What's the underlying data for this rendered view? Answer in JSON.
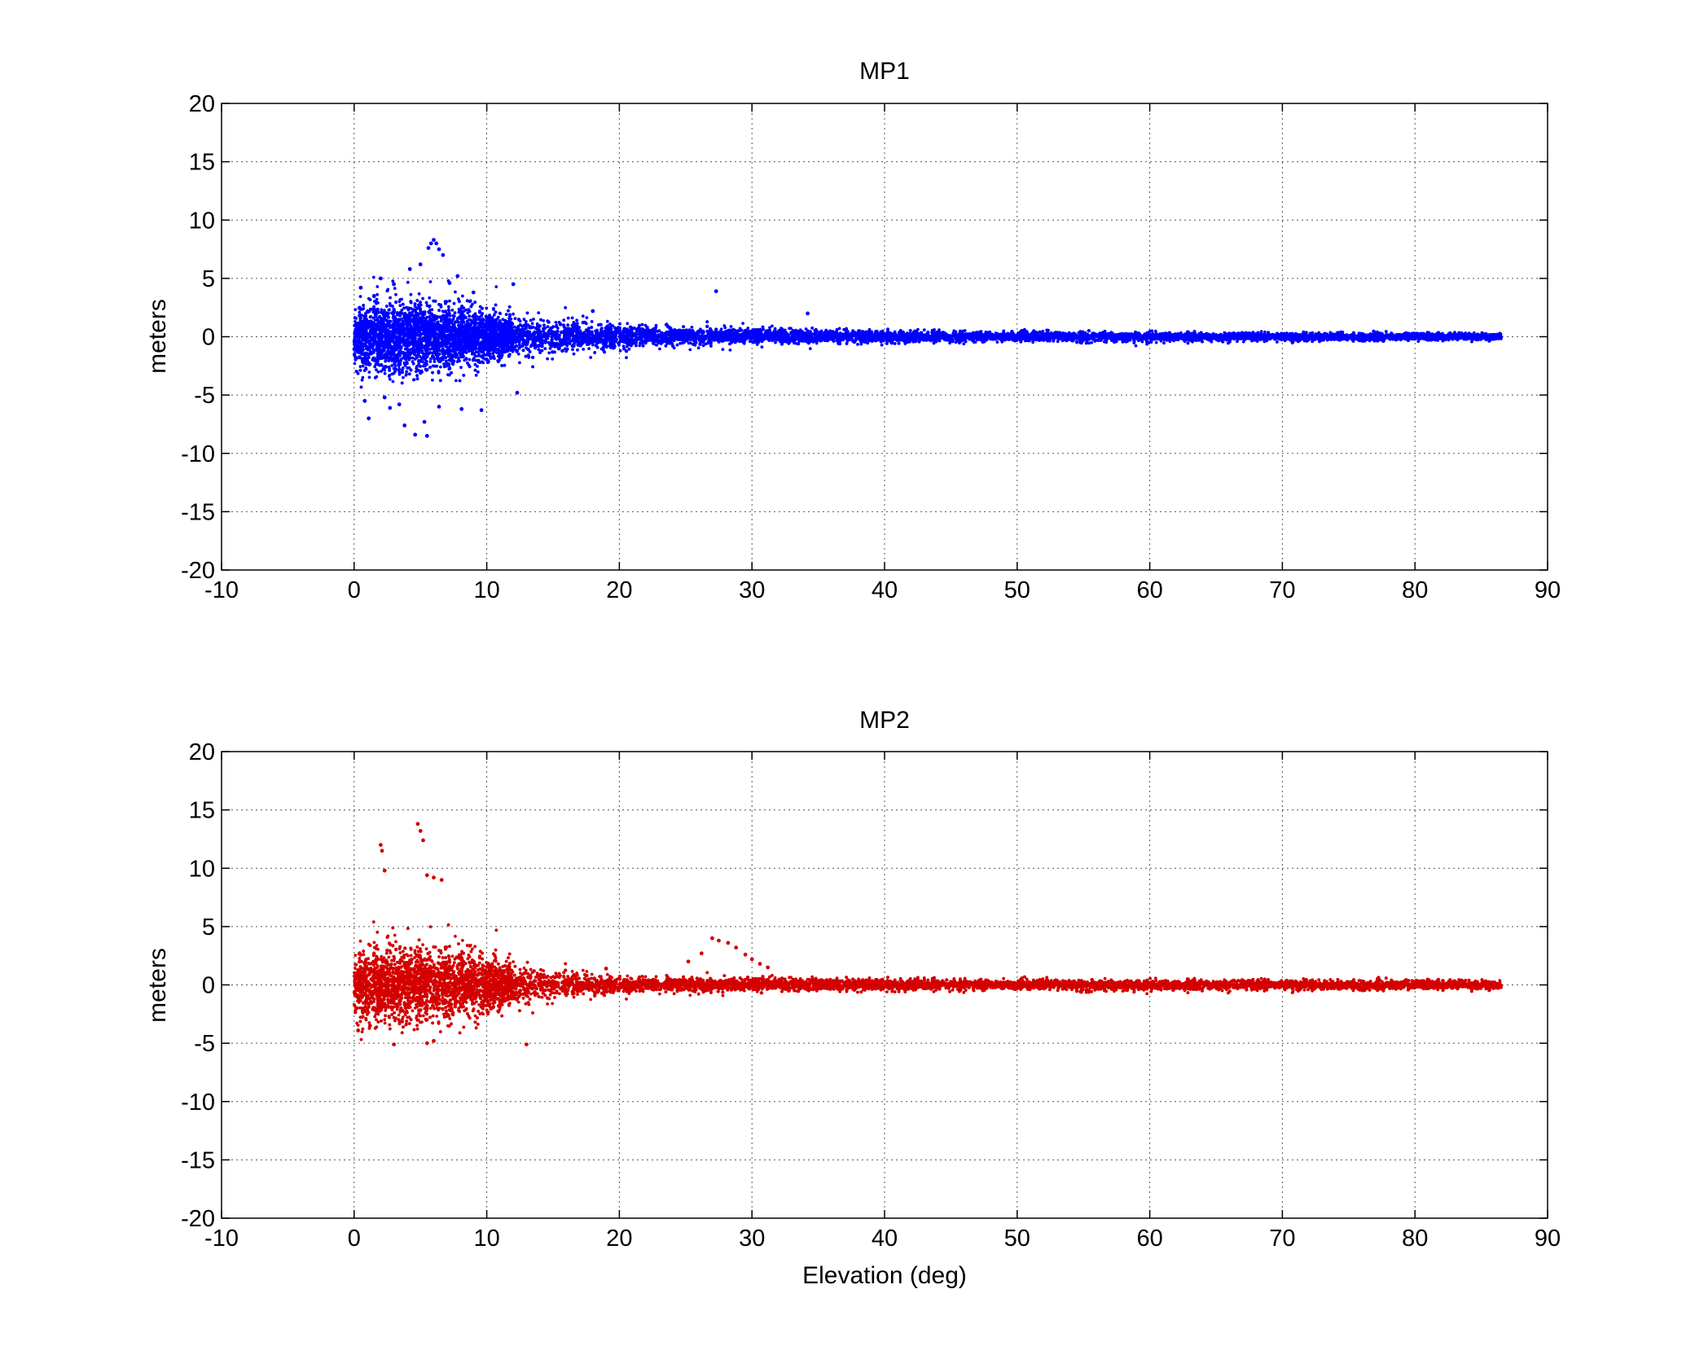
{
  "chart_data": [
    {
      "type": "scatter",
      "title": "MP1",
      "xlabel": "",
      "ylabel": "meters",
      "xlim": [
        -10,
        90
      ],
      "ylim": [
        -20,
        20
      ],
      "xticks": [
        -10,
        0,
        10,
        20,
        30,
        40,
        50,
        60,
        70,
        80,
        90
      ],
      "yticks": [
        20,
        15,
        10,
        5,
        0,
        -5,
        -10,
        -15,
        -20
      ],
      "grid": true,
      "series": [
        {
          "color": "#0000ff",
          "points": [
            [
              0.5,
              4.2
            ],
            [
              0.8,
              -5.5
            ],
            [
              1.1,
              -7.0
            ],
            [
              1.5,
              3.5
            ],
            [
              2.0,
              5.0
            ],
            [
              2.3,
              -5.2
            ],
            [
              2.7,
              -6.1
            ],
            [
              3.0,
              4.5
            ],
            [
              3.4,
              -5.8
            ],
            [
              3.8,
              -7.6
            ],
            [
              4.2,
              5.8
            ],
            [
              4.6,
              -8.4
            ],
            [
              5.0,
              6.2
            ],
            [
              5.3,
              -7.3
            ],
            [
              5.6,
              7.6
            ],
            [
              5.8,
              8.0
            ],
            [
              6.0,
              8.3
            ],
            [
              6.2,
              8.0
            ],
            [
              6.4,
              7.5
            ],
            [
              6.7,
              7.0
            ],
            [
              5.5,
              -8.5
            ],
            [
              6.4,
              -6.0
            ],
            [
              7.2,
              4.6
            ],
            [
              7.8,
              5.2
            ],
            [
              8.1,
              -6.2
            ],
            [
              9.0,
              3.8
            ],
            [
              9.6,
              -6.3
            ],
            [
              12.0,
              4.5
            ],
            [
              12.3,
              -4.8
            ],
            [
              18.0,
              2.2
            ],
            [
              27.3,
              3.9
            ],
            [
              34.2,
              2.0
            ]
          ],
          "band": [
            [
              0,
              3.0
            ],
            [
              3,
              3.8
            ],
            [
              6,
              3.2
            ],
            [
              10,
              2.3
            ],
            [
              15,
              1.6
            ],
            [
              20,
              1.2
            ],
            [
              25,
              0.9
            ],
            [
              30,
              0.75
            ],
            [
              40,
              0.55
            ],
            [
              50,
              0.45
            ],
            [
              60,
              0.42
            ],
            [
              70,
              0.38
            ],
            [
              80,
              0.35
            ],
            [
              86.5,
              0.33
            ]
          ]
        }
      ]
    },
    {
      "type": "scatter",
      "title": "MP2",
      "xlabel": "Elevation (deg)",
      "ylabel": "meters",
      "xlim": [
        -10,
        90
      ],
      "ylim": [
        -20,
        20
      ],
      "xticks": [
        -10,
        0,
        10,
        20,
        30,
        40,
        50,
        60,
        70,
        80,
        90
      ],
      "yticks": [
        20,
        15,
        10,
        5,
        0,
        -5,
        -10,
        -15,
        -20
      ],
      "grid": true,
      "series": [
        {
          "color": "#d40000",
          "points": [
            [
              0.3,
              -3.9
            ],
            [
              1.2,
              -3.5
            ],
            [
              2.0,
              12.0
            ],
            [
              2.1,
              11.5
            ],
            [
              2.3,
              9.8
            ],
            [
              3.0,
              -5.1
            ],
            [
              4.8,
              13.8
            ],
            [
              5.0,
              13.2
            ],
            [
              5.2,
              12.4
            ],
            [
              5.5,
              9.4
            ],
            [
              6.0,
              9.2
            ],
            [
              6.6,
              9.0
            ],
            [
              5.5,
              -5.0
            ],
            [
              6.0,
              -4.8
            ],
            [
              13.0,
              -5.1
            ],
            [
              27.0,
              4.0
            ],
            [
              27.5,
              3.8
            ],
            [
              28.2,
              3.6
            ],
            [
              28.8,
              3.2
            ],
            [
              29.5,
              2.6
            ],
            [
              30.0,
              2.2
            ],
            [
              30.6,
              1.8
            ],
            [
              31.2,
              1.5
            ],
            [
              25.2,
              2.0
            ],
            [
              26.2,
              2.7
            ],
            [
              19.0,
              1.4
            ]
          ],
          "band": [
            [
              0,
              3.3
            ],
            [
              3,
              3.9
            ],
            [
              6,
              3.4
            ],
            [
              10,
              2.6
            ],
            [
              13,
              1.8
            ],
            [
              16,
              1.1
            ],
            [
              20,
              0.8
            ],
            [
              30,
              0.65
            ],
            [
              40,
              0.55
            ],
            [
              50,
              0.5
            ],
            [
              60,
              0.5
            ],
            [
              70,
              0.48
            ],
            [
              80,
              0.46
            ],
            [
              86.5,
              0.42
            ]
          ]
        }
      ]
    }
  ]
}
